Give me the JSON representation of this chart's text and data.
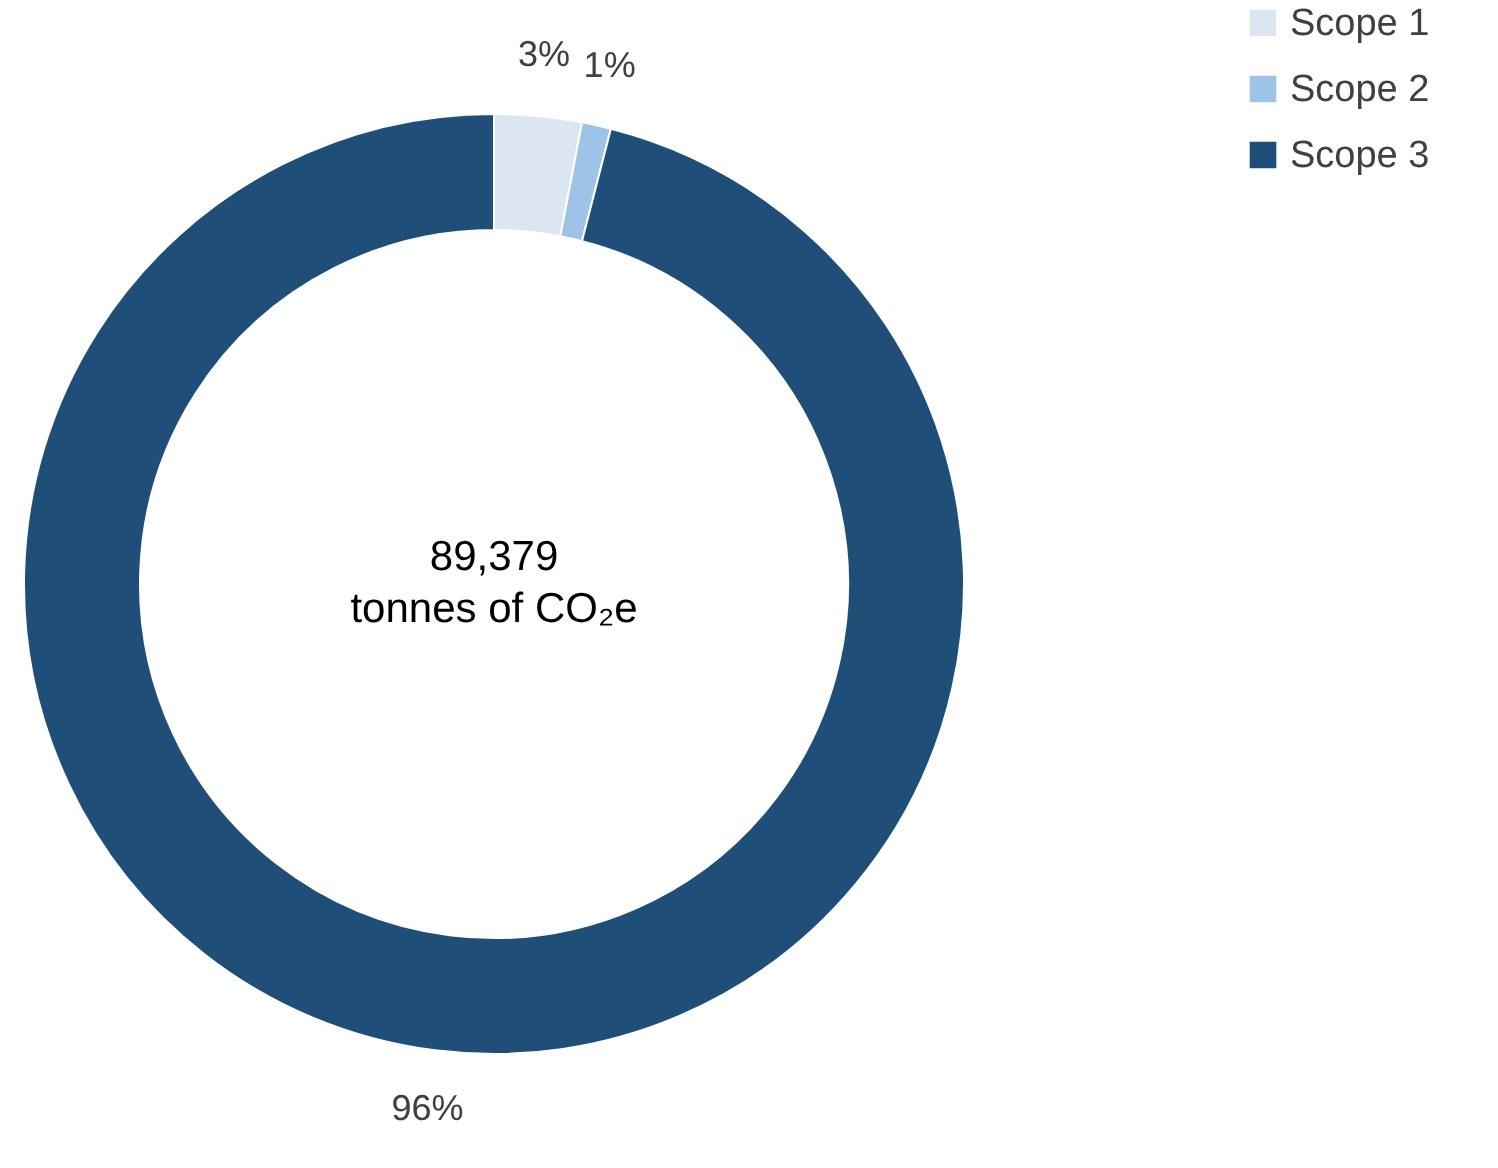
{
  "chart_data": {
    "type": "donut",
    "categories": [
      "Scope 1",
      "Scope 2",
      "Scope 3"
    ],
    "values": [
      3,
      1,
      96
    ],
    "value_labels": [
      "3%",
      "1%",
      "96%"
    ],
    "colors": [
      "#dce6f2",
      "#9dc3e6",
      "#1f4e79"
    ],
    "annotations": [
      "89,379",
      "tonnes of CO₂e"
    ],
    "legend": "right"
  }
}
